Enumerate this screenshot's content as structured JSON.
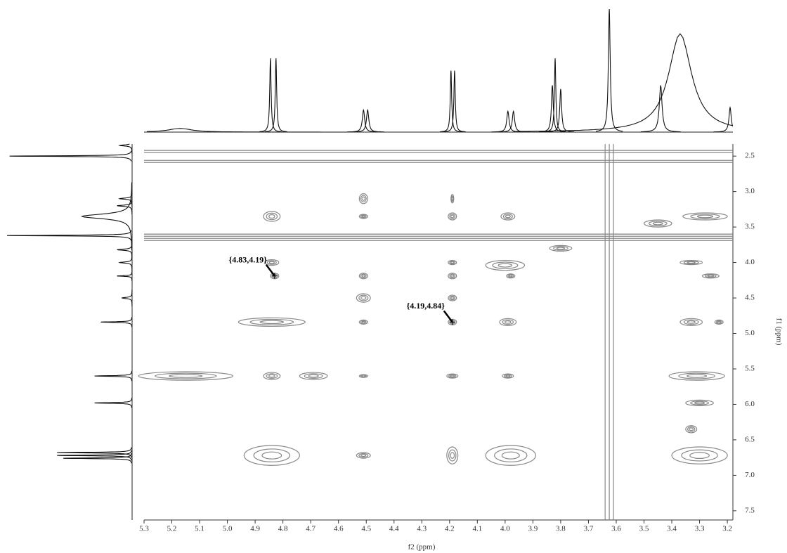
{
  "chart_data": {
    "type": "contour",
    "x_label": "f2 (ppm)",
    "y_label": "f1 (ppm)",
    "xlim": [
      5.3,
      3.18
    ],
    "ylim": [
      2.33,
      7.63
    ],
    "xticks": [
      5.3,
      5.2,
      5.1,
      {
        "value": 5.0,
        "label": "5.0"
      },
      4.9,
      4.8,
      4.7,
      4.6,
      4.5,
      4.4,
      4.3,
      4.2,
      4.1,
      {
        "value": 4.0,
        "label": "4.0"
      },
      3.9,
      3.8,
      3.7,
      3.6,
      3.5,
      3.4,
      3.3,
      3.2
    ],
    "yticks": [
      2.5,
      {
        "value": 3.0,
        "label": "3.0"
      },
      3.5,
      {
        "value": 4.0,
        "label": "4.0"
      },
      4.5,
      {
        "value": 5.0,
        "label": "5.0"
      },
      5.5,
      {
        "value": 6.0,
        "label": "6.0"
      },
      6.5,
      {
        "value": 7.0,
        "label": "7.0"
      },
      7.5
    ],
    "color": "#888888",
    "cross_peaks": [
      {
        "f2": 4.84,
        "f1": 3.35,
        "w": 0.03,
        "h": 0.07
      },
      {
        "f2": 4.51,
        "f1": 3.1,
        "w": 0.015,
        "h": 0.07
      },
      {
        "f2": 4.51,
        "f1": 3.35,
        "w": 0.015,
        "h": 0.03
      },
      {
        "f2": 4.19,
        "f1": 3.1,
        "w": 0.005,
        "h": 0.06
      },
      {
        "f2": 4.19,
        "f1": 3.35,
        "w": 0.015,
        "h": 0.05
      },
      {
        "f2": 3.99,
        "f1": 3.35,
        "w": 0.025,
        "h": 0.05
      },
      {
        "f2": 3.45,
        "f1": 3.45,
        "w": 0.05,
        "h": 0.05
      },
      {
        "f2": 3.28,
        "f1": 3.35,
        "w": 0.08,
        "h": 0.05
      },
      {
        "f2": 3.8,
        "f1": 3.8,
        "w": 0.04,
        "h": 0.04
      },
      {
        "f2": 4.84,
        "f1": 4.0,
        "w": 0.025,
        "h": 0.04
      },
      {
        "f2": 4.83,
        "f1": 4.19,
        "w": 0.015,
        "h": 0.04
      },
      {
        "f2": 4.51,
        "f1": 4.19,
        "w": 0.015,
        "h": 0.04
      },
      {
        "f2": 4.19,
        "f1": 4.0,
        "w": 0.015,
        "h": 0.03
      },
      {
        "f2": 4.19,
        "f1": 4.19,
        "w": 0.015,
        "h": 0.04
      },
      {
        "f2": 4.0,
        "f1": 4.04,
        "w": 0.07,
        "h": 0.07
      },
      {
        "f2": 3.98,
        "f1": 4.19,
        "w": 0.015,
        "h": 0.03
      },
      {
        "f2": 3.33,
        "f1": 4.0,
        "w": 0.04,
        "h": 0.03
      },
      {
        "f2": 3.26,
        "f1": 4.19,
        "w": 0.03,
        "h": 0.03
      },
      {
        "f2": 4.51,
        "f1": 4.5,
        "w": 0.025,
        "h": 0.06
      },
      {
        "f2": 4.19,
        "f1": 4.5,
        "w": 0.015,
        "h": 0.04
      },
      {
        "f2": 4.84,
        "f1": 4.84,
        "w": 0.12,
        "h": 0.06
      },
      {
        "f2": 4.51,
        "f1": 4.84,
        "w": 0.015,
        "h": 0.03
      },
      {
        "f2": 4.19,
        "f1": 4.84,
        "w": 0.015,
        "h": 0.04
      },
      {
        "f2": 3.99,
        "f1": 4.84,
        "w": 0.03,
        "h": 0.05
      },
      {
        "f2": 3.33,
        "f1": 4.84,
        "w": 0.04,
        "h": 0.05
      },
      {
        "f2": 3.23,
        "f1": 4.84,
        "w": 0.015,
        "h": 0.03
      },
      {
        "f2": 5.15,
        "f1": 5.6,
        "w": 0.17,
        "h": 0.06
      },
      {
        "f2": 4.84,
        "f1": 5.6,
        "w": 0.03,
        "h": 0.05
      },
      {
        "f2": 4.69,
        "f1": 5.6,
        "w": 0.05,
        "h": 0.05
      },
      {
        "f2": 4.51,
        "f1": 5.6,
        "w": 0.015,
        "h": 0.02
      },
      {
        "f2": 4.19,
        "f1": 5.6,
        "w": 0.02,
        "h": 0.03
      },
      {
        "f2": 3.99,
        "f1": 5.6,
        "w": 0.02,
        "h": 0.03
      },
      {
        "f2": 3.31,
        "f1": 5.6,
        "w": 0.1,
        "h": 0.06
      },
      {
        "f2": 3.3,
        "f1": 5.98,
        "w": 0.05,
        "h": 0.04
      },
      {
        "f2": 3.33,
        "f1": 6.35,
        "w": 0.02,
        "h": 0.05
      },
      {
        "f2": 4.84,
        "f1": 6.72,
        "w": 0.1,
        "h": 0.14
      },
      {
        "f2": 4.51,
        "f1": 6.72,
        "w": 0.025,
        "h": 0.04
      },
      {
        "f2": 4.19,
        "f1": 6.72,
        "w": 0.02,
        "h": 0.12
      },
      {
        "f2": 3.98,
        "f1": 6.72,
        "w": 0.09,
        "h": 0.14
      },
      {
        "f2": 3.3,
        "f1": 6.72,
        "w": 0.1,
        "h": 0.12
      }
    ],
    "horizontal_streaks": [
      2.42,
      2.45,
      2.56,
      2.59,
      3.6,
      3.63,
      3.66,
      3.69
    ],
    "vertical_streaks": [
      3.61,
      3.625,
      3.64
    ],
    "top_projection": [
      {
        "ppm": 5.17,
        "height": 3,
        "w": 0.05
      },
      {
        "ppm": 4.845,
        "height": 60,
        "w": 0.003
      },
      {
        "ppm": 4.825,
        "height": 60,
        "w": 0.003
      },
      {
        "ppm": 4.51,
        "height": 18,
        "w": 0.005
      },
      {
        "ppm": 4.495,
        "height": 18,
        "w": 0.005
      },
      {
        "ppm": 4.195,
        "height": 50,
        "w": 0.003
      },
      {
        "ppm": 4.182,
        "height": 50,
        "w": 0.003
      },
      {
        "ppm": 3.99,
        "height": 17,
        "w": 0.005
      },
      {
        "ppm": 3.97,
        "height": 17,
        "w": 0.005
      },
      {
        "ppm": 3.83,
        "height": 38,
        "w": 0.004
      },
      {
        "ppm": 3.82,
        "height": 60,
        "w": 0.003
      },
      {
        "ppm": 3.8,
        "height": 35,
        "w": 0.004
      },
      {
        "ppm": 3.625,
        "height": 100,
        "w": 0.004
      },
      {
        "ppm": 3.44,
        "height": 38,
        "w": 0.006
      },
      {
        "ppm": 3.37,
        "height": 80,
        "w": 0.05
      },
      {
        "ppm": 3.19,
        "height": 20,
        "w": 0.005
      }
    ],
    "left_projection": [
      {
        "ppm": 2.35,
        "height": 10,
        "w": 0.01
      },
      {
        "ppm": 2.5,
        "height": 98,
        "w": 0.006
      },
      {
        "ppm": 3.1,
        "height": 10,
        "w": 0.01
      },
      {
        "ppm": 3.2,
        "height": 12,
        "w": 0.01
      },
      {
        "ppm": 3.35,
        "height": 40,
        "w": 0.04
      },
      {
        "ppm": 3.62,
        "height": 100,
        "w": 0.006
      },
      {
        "ppm": 3.82,
        "height": 12,
        "w": 0.01
      },
      {
        "ppm": 4.0,
        "height": 10,
        "w": 0.01
      },
      {
        "ppm": 4.19,
        "height": 12,
        "w": 0.006
      },
      {
        "ppm": 4.5,
        "height": 8,
        "w": 0.01
      },
      {
        "ppm": 4.84,
        "height": 25,
        "w": 0.006
      },
      {
        "ppm": 5.6,
        "height": 30,
        "w": 0.006
      },
      {
        "ppm": 5.98,
        "height": 30,
        "w": 0.006
      },
      {
        "ppm": 6.68,
        "height": 60,
        "w": 0.006
      },
      {
        "ppm": 6.72,
        "height": 60,
        "w": 0.006
      },
      {
        "ppm": 6.76,
        "height": 55,
        "w": 0.006
      }
    ],
    "annotations": [
      {
        "text": "{4.83,4.19}",
        "f2": 4.83,
        "f1": 4.19
      },
      {
        "text": "{4.19,4.84}",
        "f2": 4.19,
        "f1": 4.84
      }
    ]
  }
}
